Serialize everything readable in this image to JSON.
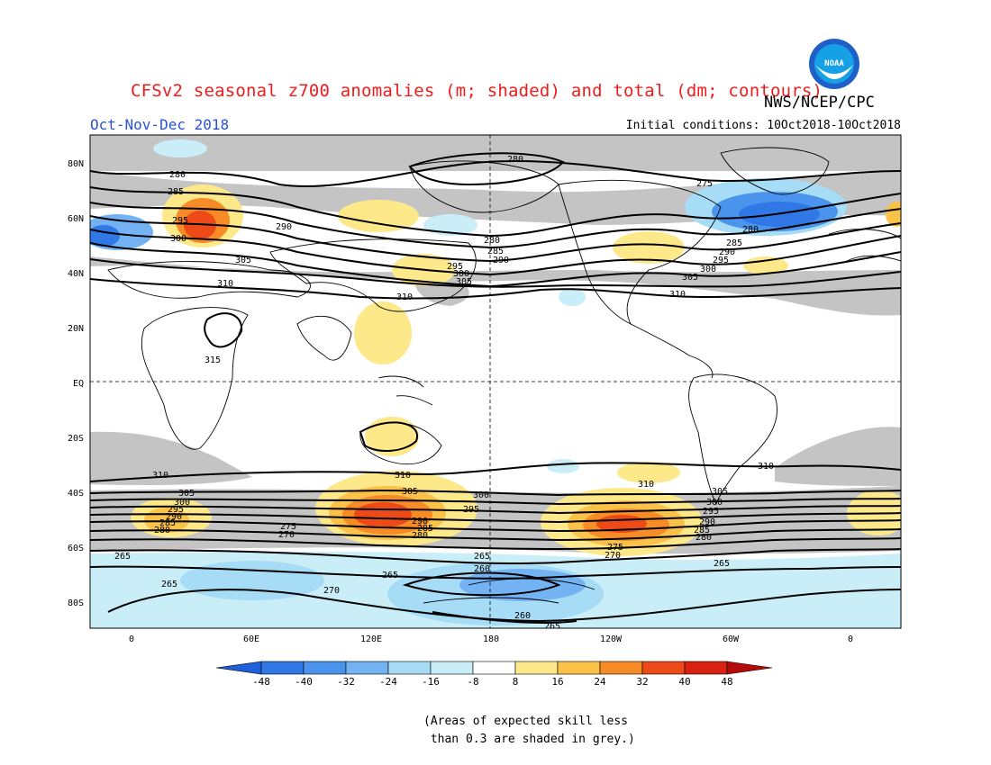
{
  "header": {
    "title": "CFSv2 seasonal z700 anomalies (m; shaded) and total (dm; contours)",
    "agency": "NWS/NCEP/CPC",
    "season": "Oct-Nov-Dec 2018",
    "initial_conditions": "Initial conditions: 10Oct2018-10Oct2018",
    "logo_text": "NOAA"
  },
  "map": {
    "lat_labels": [
      "80N",
      "60N",
      "40N",
      "20N",
      "EQ",
      "20S",
      "40S",
      "60S",
      "80S"
    ],
    "lon_labels": [
      "0",
      "60E",
      "120E",
      "180",
      "120W",
      "60W",
      "0"
    ],
    "contour_labels": [
      "280",
      "285",
      "290",
      "295",
      "300",
      "305",
      "310",
      "315",
      "275",
      "265",
      "260",
      "270"
    ]
  },
  "colorbar": {
    "tick_labels": [
      "-48",
      "-40",
      "-32",
      "-24",
      "-16",
      "-8",
      "8",
      "16",
      "24",
      "32",
      "40",
      "48"
    ],
    "colors": [
      "#1f5fd9",
      "#2f78e6",
      "#4b94ee",
      "#73b3f3",
      "#a6dcf5",
      "#c9eef8",
      "#ffffff",
      "#fde88a",
      "#fbc24a",
      "#f78b26",
      "#ee4a17",
      "#d8220f",
      "#b50a0a"
    ],
    "skill_shade_color": "#c4c4c4"
  },
  "note": "(Areas of expected skill less\n than 0.3 are shaded in grey.)"
}
